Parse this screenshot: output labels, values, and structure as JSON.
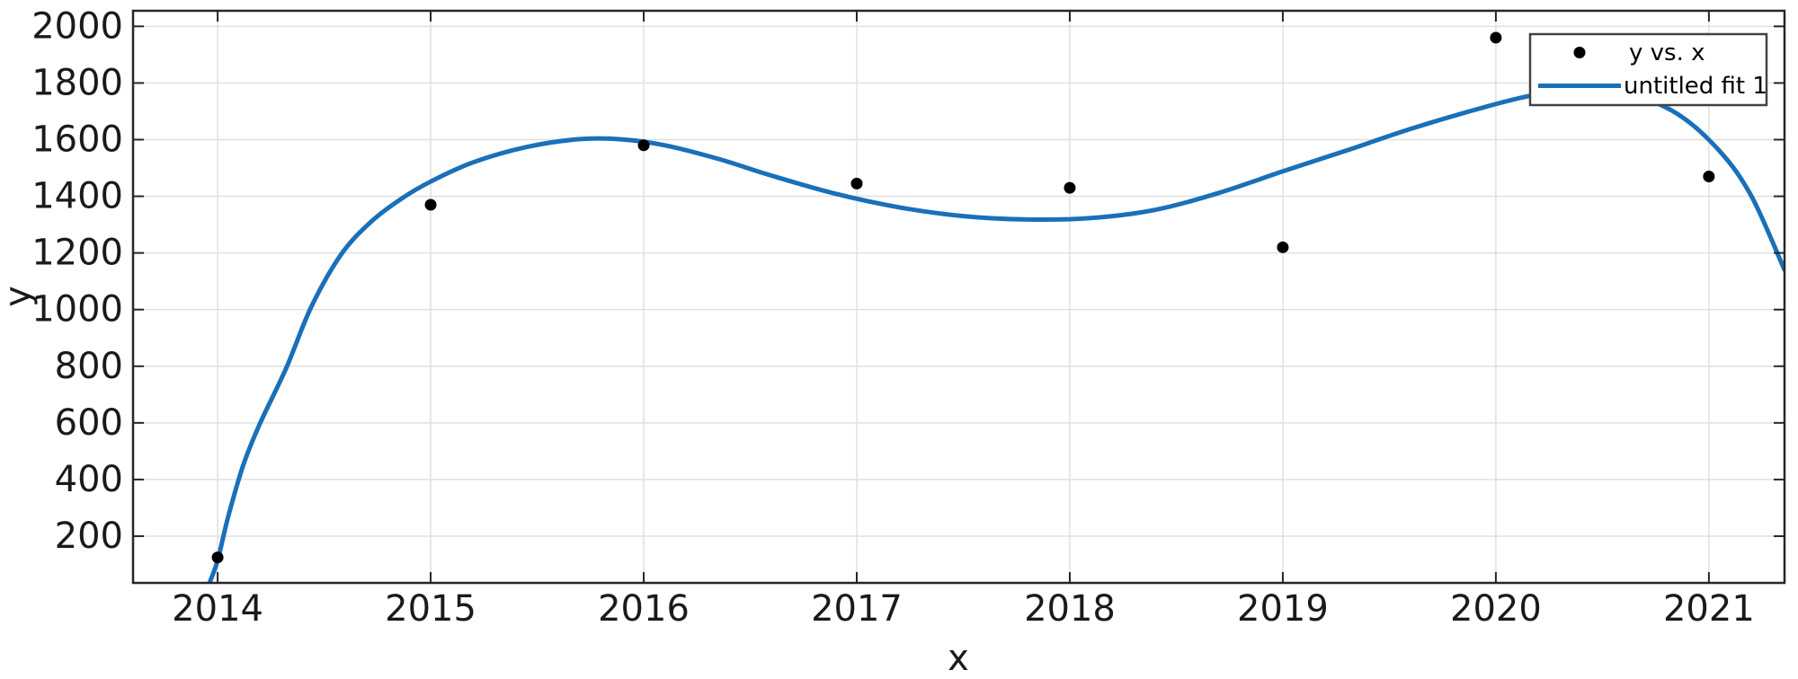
{
  "figure": {
    "title": "",
    "background": "#ffffff"
  },
  "colors": {
    "fit_line": "#1a70b8",
    "marker": "#000000",
    "grid": "#e0e0e0",
    "axis": "#262626",
    "tick_label": "#1a1a1a",
    "legend_border": "#424242",
    "legend_background": "#ffffff"
  },
  "chart_data": {
    "type": "scatter",
    "title": "",
    "xlabel": "x",
    "ylabel": "y",
    "xlim": [
      2013.603,
      2021.355
    ],
    "ylim": [
      35,
      2055
    ],
    "xticks": [
      2014,
      2015,
      2016,
      2017,
      2018,
      2019,
      2020,
      2021
    ],
    "yticks": [
      200,
      400,
      600,
      800,
      1000,
      1200,
      1400,
      1600,
      1800,
      2000
    ],
    "grid": true,
    "legend_position": "top-right",
    "series": [
      {
        "name": "y vs. x",
        "type": "scatter",
        "marker": "filled-circle",
        "color": "#000000",
        "x": [
          2014,
          2015,
          2016,
          2017,
          2018,
          2019,
          2020,
          2021
        ],
        "y": [
          125,
          1370,
          1580,
          1445,
          1430,
          1220,
          1960,
          1470
        ]
      },
      {
        "name": "untitled fit 1",
        "type": "line",
        "color": "#1a70b8",
        "curve_points": [
          [
            2013.962,
            35
          ],
          [
            2014.0,
            115
          ],
          [
            2014.05,
            270
          ],
          [
            2014.12,
            450
          ],
          [
            2014.2,
            600
          ],
          [
            2014.32,
            790
          ],
          [
            2014.44,
            1010
          ],
          [
            2014.58,
            1195
          ],
          [
            2014.72,
            1310
          ],
          [
            2014.86,
            1390
          ],
          [
            2015.0,
            1452
          ],
          [
            2015.2,
            1520
          ],
          [
            2015.45,
            1574
          ],
          [
            2015.7,
            1602
          ],
          [
            2015.9,
            1601
          ],
          [
            2016.1,
            1580
          ],
          [
            2016.35,
            1532
          ],
          [
            2016.6,
            1473
          ],
          [
            2016.9,
            1409
          ],
          [
            2017.2,
            1361
          ],
          [
            2017.5,
            1330
          ],
          [
            2017.8,
            1318
          ],
          [
            2018.1,
            1323
          ],
          [
            2018.4,
            1352
          ],
          [
            2018.7,
            1412
          ],
          [
            2019.0,
            1488
          ],
          [
            2019.3,
            1562
          ],
          [
            2019.6,
            1638
          ],
          [
            2019.9,
            1705
          ],
          [
            2020.15,
            1753
          ],
          [
            2020.4,
            1781
          ],
          [
            2020.62,
            1763
          ],
          [
            2020.85,
            1692
          ],
          [
            2021.05,
            1560
          ],
          [
            2021.2,
            1400
          ],
          [
            2021.355,
            1140
          ]
        ]
      }
    ]
  }
}
